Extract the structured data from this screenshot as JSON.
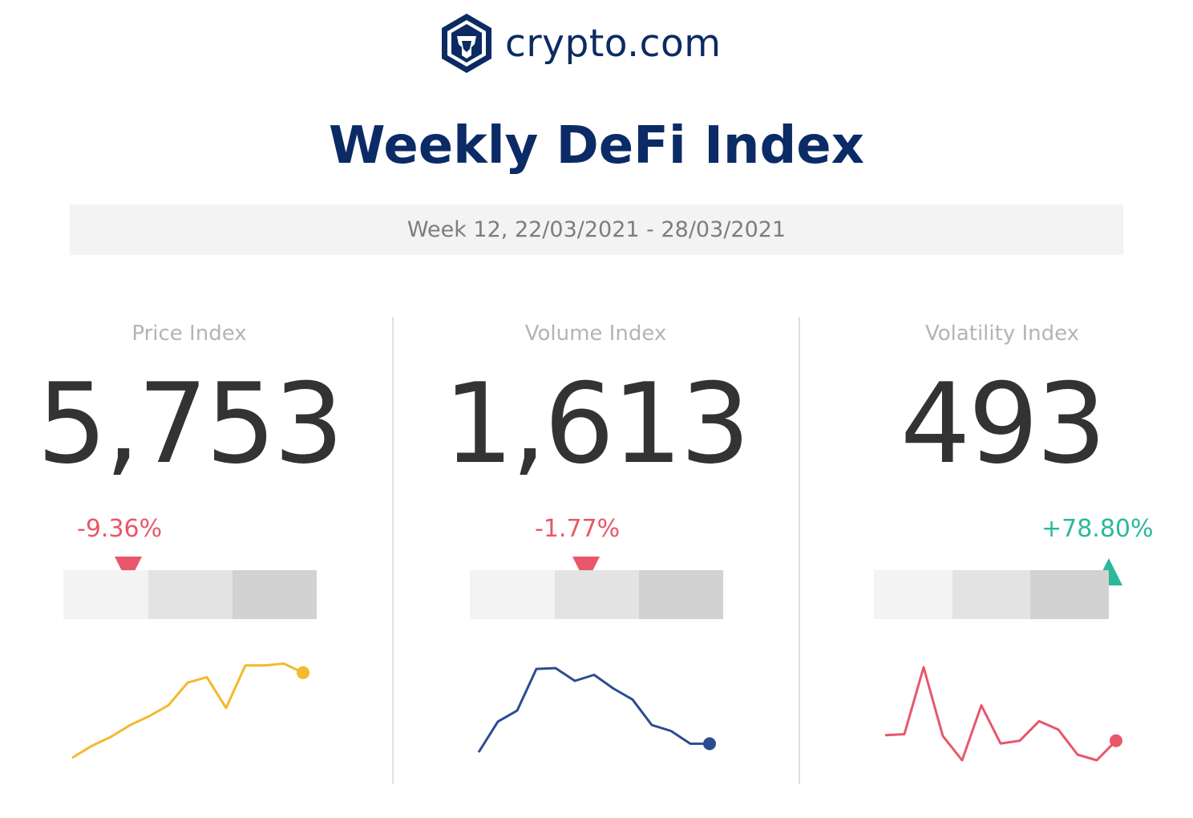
{
  "brand": {
    "name": "crypto.com",
    "logo_icon": "crypto-com-lion-shield-icon"
  },
  "title": "Weekly DeFi Index",
  "week_label": "Week 12, 22/03/2021 - 28/03/2021",
  "colors": {
    "brand_navy": "#0b2b66",
    "negative": "#e8576a",
    "positive": "#2bb89c",
    "price_line": "#f5b82e",
    "volume_line": "#2b4d8f",
    "volatility_line": "#e8576a"
  },
  "chart_data": [
    {
      "type": "line",
      "label": "Price Index",
      "value": "5,753",
      "change": "-9.36%",
      "direction": "down",
      "gauge_position": 0.25,
      "series": [
        {
          "values": [
            0.0,
            0.13,
            0.23,
            0.36,
            0.46,
            0.58,
            0.83,
            0.89,
            0.55,
            1.02,
            1.02,
            1.04,
            0.94
          ]
        }
      ]
    },
    {
      "type": "line",
      "label": "Volume Index",
      "value": "1,613",
      "change": "-1.77%",
      "direction": "down",
      "gauge_position": 0.46,
      "series": [
        {
          "values": [
            0.0,
            0.36,
            0.49,
            0.98,
            0.99,
            0.84,
            0.91,
            0.75,
            0.62,
            0.32,
            0.25,
            0.1,
            0.1
          ]
        }
      ]
    },
    {
      "type": "line",
      "label": "Volatility Index",
      "value": "493",
      "change": "+78.80%",
      "direction": "up",
      "gauge_position": 1.0,
      "series": [
        {
          "values": [
            0.27,
            0.28,
            1.0,
            0.26,
            0.0,
            0.59,
            0.18,
            0.21,
            0.42,
            0.33,
            0.06,
            0.0,
            0.21
          ]
        }
      ]
    }
  ]
}
